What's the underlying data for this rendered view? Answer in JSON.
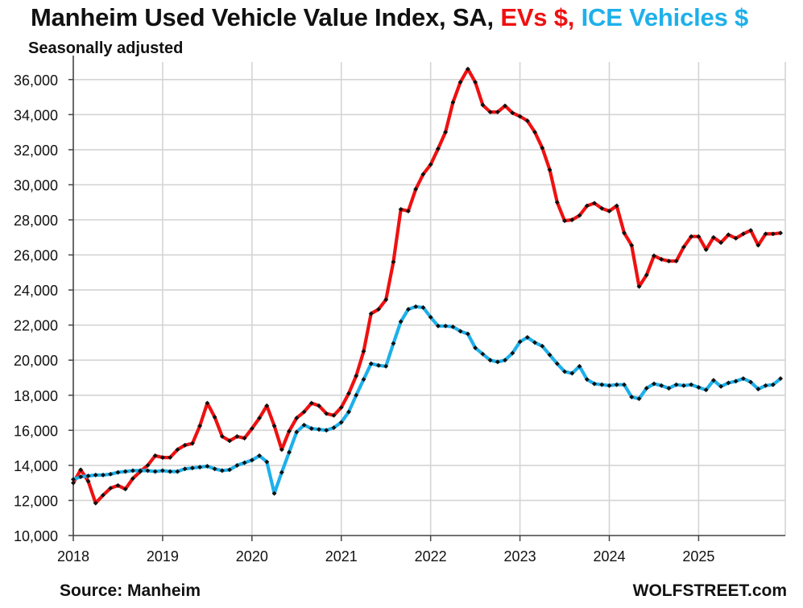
{
  "header": {
    "title_main": "Manheim Used Vehicle Value Index, SA, ",
    "title_ev": "EVs $,",
    "title_ice": " ICE Vehicles $",
    "subtitle": "Seasonally adjusted"
  },
  "footer": {
    "source": "Source: Manheim",
    "brand": "WOLFSTREET.com"
  },
  "colors": {
    "ev": "#ee1111",
    "ice": "#1eb0ea",
    "marker": "#111111",
    "grid": "#d4d4d4",
    "axis": "#444444"
  },
  "chart_data": {
    "type": "line",
    "title": "Manheim Used Vehicle Value Index, SA, EVs $, ICE Vehicles $",
    "subtitle": "Seasonally adjusted",
    "xlim": [
      2018.0,
      2025.97
    ],
    "ylim": [
      10000,
      37000
    ],
    "x_ticks": [
      2018,
      2019,
      2020,
      2021,
      2022,
      2023,
      2024,
      2025
    ],
    "y_ticks": [
      10000,
      12000,
      14000,
      16000,
      18000,
      20000,
      22000,
      24000,
      26000,
      28000,
      30000,
      32000,
      34000,
      36000
    ],
    "y_tick_labels": [
      "10,000",
      "12,000",
      "14,000",
      "16,000",
      "18,000",
      "20,000",
      "22,000",
      "24,000",
      "26,000",
      "28,000",
      "30,000",
      "32,000",
      "34,000",
      "36,000"
    ],
    "grid": true,
    "x_start": "2018-01",
    "x_step": "monthly",
    "series": [
      {
        "name": "EVs $",
        "color": "#ee1111",
        "values": [
          13000,
          13750,
          13100,
          11850,
          12300,
          12700,
          12850,
          12650,
          13250,
          13650,
          14000,
          14550,
          14450,
          14450,
          14900,
          15150,
          15250,
          16250,
          17550,
          16750,
          15650,
          15400,
          15650,
          15550,
          16100,
          16700,
          17400,
          16250,
          14900,
          15950,
          16700,
          17050,
          17550,
          17400,
          16950,
          16850,
          17300,
          18100,
          19100,
          20500,
          22650,
          22900,
          23450,
          25600,
          28600,
          28500,
          29750,
          30600,
          31150,
          32050,
          33000,
          34700,
          35850,
          36600,
          35850,
          34550,
          34150,
          34150,
          34500,
          34100,
          33900,
          33650,
          33000,
          32100,
          30850,
          29000,
          27950,
          28000,
          28250,
          28800,
          28950,
          28650,
          28500,
          28800,
          27250,
          26550,
          24200,
          24850,
          25950,
          25750,
          25650,
          25650,
          26450,
          27050,
          27050,
          26300,
          27000,
          26700,
          27150,
          26950,
          27200,
          27400,
          26550,
          27200,
          27200,
          27250
        ]
      },
      {
        "name": "ICE Vehicles $",
        "color": "#1eb0ea",
        "values": [
          13200,
          13350,
          13400,
          13450,
          13450,
          13500,
          13600,
          13650,
          13700,
          13700,
          13700,
          13650,
          13700,
          13650,
          13650,
          13800,
          13850,
          13900,
          13950,
          13800,
          13700,
          13750,
          14000,
          14150,
          14300,
          14550,
          14200,
          12400,
          13600,
          14750,
          15900,
          16300,
          16100,
          16050,
          16000,
          16150,
          16450,
          17050,
          18000,
          18900,
          19800,
          19700,
          19650,
          20950,
          22200,
          22900,
          23050,
          23000,
          22450,
          21950,
          21950,
          21900,
          21650,
          21500,
          20700,
          20350,
          20000,
          19900,
          20000,
          20400,
          21050,
          21300,
          21000,
          20800,
          20300,
          19800,
          19350,
          19250,
          19650,
          18900,
          18650,
          18600,
          18550,
          18600,
          18600,
          17900,
          17800,
          18400,
          18650,
          18550,
          18400,
          18600,
          18550,
          18600,
          18450,
          18300,
          18850,
          18500,
          18700,
          18800,
          18950,
          18750,
          18350,
          18550,
          18600,
          18950
        ]
      }
    ]
  }
}
